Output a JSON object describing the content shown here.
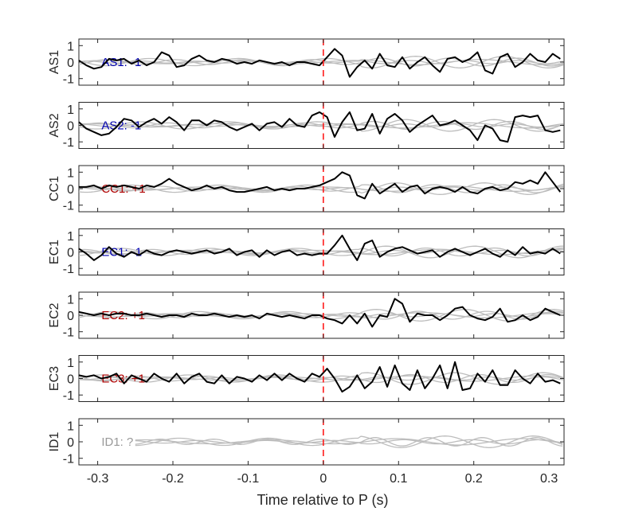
{
  "chart_data": {
    "type": "line",
    "xlabel": "Time relative to P (s)",
    "xlim": [
      -0.325,
      0.32
    ],
    "x_ticks": [
      -0.3,
      -0.2,
      -0.1,
      0,
      0.1,
      0.2,
      0.3
    ],
    "x_tick_labels": [
      "-0.3",
      "-0.2",
      "-0.1",
      "0",
      "0.1",
      "0.2",
      "0.3"
    ],
    "ylim": [
      -1.4,
      1.4
    ],
    "y_ticks": [
      1,
      0,
      -1
    ],
    "y_tick_labels": [
      "1",
      "0",
      "-1"
    ],
    "reference_line_x": 0,
    "colors": {
      "positive": "#b00000",
      "negative": "#0000b0",
      "unknown": "#999999",
      "trace": "#000000",
      "reference": "#bdbdbd",
      "p_marker": "#ff1a1a"
    },
    "panels": [
      {
        "ylabel": "AS1",
        "status": "AS1: -1",
        "polarity": "negative",
        "x": [
          -0.325,
          -0.315,
          -0.305,
          -0.295,
          -0.285,
          -0.275,
          -0.265,
          -0.255,
          -0.245,
          -0.235,
          -0.225,
          -0.215,
          -0.205,
          -0.195,
          -0.185,
          -0.175,
          -0.165,
          -0.155,
          -0.145,
          -0.135,
          -0.125,
          -0.115,
          -0.105,
          -0.095,
          -0.085,
          -0.075,
          -0.065,
          -0.055,
          -0.045,
          -0.035,
          -0.025,
          -0.015,
          -0.005,
          0.005,
          0.015,
          0.025,
          0.035,
          0.045,
          0.055,
          0.065,
          0.075,
          0.085,
          0.095,
          0.105,
          0.115,
          0.125,
          0.135,
          0.145,
          0.155,
          0.165,
          0.175,
          0.185,
          0.195,
          0.205,
          0.215,
          0.225,
          0.235,
          0.245,
          0.255,
          0.265,
          0.275,
          0.285,
          0.295,
          0.305,
          0.315
        ],
        "y": [
          0.1,
          -0.2,
          -0.4,
          -0.3,
          0.2,
          0.1,
          0.2,
          -0.1,
          0.1,
          -0.2,
          0.0,
          0.6,
          0.4,
          -0.3,
          -0.2,
          0.2,
          0.4,
          0.1,
          0.0,
          0.2,
          0.1,
          -0.1,
          0.0,
          -0.1,
          0.1,
          0.0,
          -0.1,
          0.0,
          -0.2,
          0.0,
          0.0,
          -0.1,
          -0.2,
          0.3,
          0.8,
          0.4,
          -0.9,
          -0.3,
          0.1,
          -0.4,
          0.5,
          -0.2,
          -0.3,
          0.3,
          -0.4,
          0.0,
          0.3,
          -0.2,
          -0.6,
          0.2,
          0.3,
          0.0,
          0.2,
          0.6,
          -0.5,
          -0.7,
          0.3,
          0.5,
          -0.3,
          0.0,
          0.5,
          0.1,
          0.0,
          0.5,
          0.2
        ]
      },
      {
        "ylabel": "AS2",
        "status": "AS2: -1",
        "polarity": "negative",
        "x": [
          -0.325,
          -0.315,
          -0.305,
          -0.295,
          -0.285,
          -0.275,
          -0.265,
          -0.255,
          -0.245,
          -0.235,
          -0.225,
          -0.215,
          -0.205,
          -0.195,
          -0.185,
          -0.175,
          -0.165,
          -0.155,
          -0.145,
          -0.135,
          -0.125,
          -0.115,
          -0.105,
          -0.095,
          -0.085,
          -0.075,
          -0.065,
          -0.055,
          -0.045,
          -0.035,
          -0.025,
          -0.015,
          -0.005,
          0.005,
          0.015,
          0.025,
          0.035,
          0.045,
          0.055,
          0.065,
          0.075,
          0.085,
          0.095,
          0.105,
          0.115,
          0.125,
          0.135,
          0.145,
          0.155,
          0.165,
          0.175,
          0.185,
          0.195,
          0.205,
          0.215,
          0.225,
          0.235,
          0.245,
          0.255,
          0.265,
          0.275,
          0.285,
          0.295,
          0.305,
          0.315
        ],
        "y": [
          0.2,
          -0.2,
          -0.4,
          -0.6,
          -0.5,
          -0.1,
          0.4,
          0.3,
          -0.1,
          0.2,
          0.4,
          0.1,
          0.5,
          0.2,
          -0.3,
          0.3,
          0.3,
          0.0,
          0.3,
          0.2,
          -0.1,
          -0.3,
          -0.1,
          0.1,
          -0.3,
          0.1,
          0.2,
          -0.1,
          0.4,
          0.0,
          -0.1,
          0.6,
          0.8,
          0.5,
          -0.7,
          0.2,
          0.8,
          -0.3,
          -0.2,
          0.7,
          -0.5,
          0.4,
          0.7,
          0.3,
          -0.4,
          0.0,
          0.3,
          0.6,
          0.0,
          0.1,
          0.3,
          0.0,
          -0.3,
          -0.9,
          0.0,
          -0.2,
          -0.9,
          -1.0,
          0.5,
          0.6,
          0.5,
          0.6,
          -0.3,
          -0.4,
          -0.3
        ]
      },
      {
        "ylabel": "CC1",
        "status": "CC1: +1",
        "polarity": "positive",
        "x": [
          -0.325,
          -0.315,
          -0.305,
          -0.295,
          -0.285,
          -0.275,
          -0.265,
          -0.255,
          -0.245,
          -0.235,
          -0.225,
          -0.215,
          -0.205,
          -0.195,
          -0.185,
          -0.175,
          -0.165,
          -0.155,
          -0.145,
          -0.135,
          -0.125,
          -0.115,
          -0.105,
          -0.095,
          -0.085,
          -0.075,
          -0.065,
          -0.055,
          -0.045,
          -0.035,
          -0.025,
          -0.015,
          -0.005,
          0.005,
          0.015,
          0.025,
          0.035,
          0.045,
          0.055,
          0.065,
          0.075,
          0.085,
          0.095,
          0.105,
          0.115,
          0.125,
          0.135,
          0.145,
          0.155,
          0.165,
          0.175,
          0.185,
          0.195,
          0.205,
          0.215,
          0.225,
          0.235,
          0.245,
          0.255,
          0.265,
          0.275,
          0.285,
          0.295,
          0.305,
          0.315
        ],
        "y": [
          0.1,
          0.1,
          0.2,
          0.0,
          0.2,
          0.1,
          0.2,
          0.1,
          0.0,
          0.2,
          0.1,
          0.3,
          0.6,
          0.3,
          0.1,
          -0.1,
          0.0,
          0.2,
          0.0,
          0.1,
          -0.1,
          -0.2,
          -0.2,
          -0.1,
          0.0,
          0.1,
          -0.1,
          0.0,
          -0.1,
          0.0,
          0.0,
          0.1,
          0.2,
          0.4,
          0.6,
          1.0,
          0.8,
          -0.4,
          -0.6,
          0.3,
          -0.3,
          0.0,
          0.3,
          -0.2,
          0.1,
          0.2,
          -0.3,
          0.0,
          0.1,
          0.0,
          -0.2,
          0.1,
          -0.2,
          -0.3,
          0.0,
          0.1,
          -0.1,
          0.0,
          0.4,
          0.3,
          0.5,
          0.3,
          1.0,
          0.4,
          -0.2
        ]
      },
      {
        "ylabel": "EC1",
        "status": "EC1: -1",
        "polarity": "negative",
        "x": [
          -0.325,
          -0.315,
          -0.305,
          -0.295,
          -0.285,
          -0.275,
          -0.265,
          -0.255,
          -0.245,
          -0.235,
          -0.225,
          -0.215,
          -0.205,
          -0.195,
          -0.185,
          -0.175,
          -0.165,
          -0.155,
          -0.145,
          -0.135,
          -0.125,
          -0.115,
          -0.105,
          -0.095,
          -0.085,
          -0.075,
          -0.065,
          -0.055,
          -0.045,
          -0.035,
          -0.025,
          -0.015,
          -0.005,
          0.005,
          0.015,
          0.025,
          0.035,
          0.045,
          0.055,
          0.065,
          0.075,
          0.085,
          0.095,
          0.105,
          0.115,
          0.125,
          0.135,
          0.145,
          0.155,
          0.165,
          0.175,
          0.185,
          0.195,
          0.205,
          0.215,
          0.225,
          0.235,
          0.245,
          0.255,
          0.265,
          0.275,
          0.285,
          0.295,
          0.305,
          0.315
        ],
        "y": [
          0.2,
          -0.1,
          -0.5,
          -0.2,
          0.3,
          -0.1,
          -0.3,
          0.0,
          -0.2,
          0.1,
          -0.1,
          -0.2,
          0.0,
          0.1,
          0.0,
          -0.1,
          0.0,
          0.1,
          -0.1,
          0.0,
          0.2,
          -0.2,
          0.0,
          0.1,
          -0.3,
          0.1,
          -0.2,
          0.0,
          0.1,
          -0.2,
          -0.1,
          -0.2,
          -0.1,
          -0.1,
          0.4,
          1.0,
          0.2,
          -0.5,
          0.5,
          0.7,
          -0.3,
          0.0,
          0.2,
          0.3,
          0.1,
          -0.1,
          0.0,
          0.1,
          -0.3,
          0.0,
          0.2,
          0.0,
          -0.2,
          0.0,
          0.2,
          -0.1,
          -0.3,
          0.1,
          -0.2,
          0.3,
          -0.1,
          0.0,
          -0.1,
          0.2,
          -0.1
        ]
      },
      {
        "ylabel": "EC2",
        "status": "EC2: +1",
        "polarity": "positive",
        "x": [
          -0.325,
          -0.315,
          -0.305,
          -0.295,
          -0.285,
          -0.275,
          -0.265,
          -0.255,
          -0.245,
          -0.235,
          -0.225,
          -0.215,
          -0.205,
          -0.195,
          -0.185,
          -0.175,
          -0.165,
          -0.155,
          -0.145,
          -0.135,
          -0.125,
          -0.115,
          -0.105,
          -0.095,
          -0.085,
          -0.075,
          -0.065,
          -0.055,
          -0.045,
          -0.035,
          -0.025,
          -0.015,
          -0.005,
          0.005,
          0.015,
          0.025,
          0.035,
          0.045,
          0.055,
          0.065,
          0.075,
          0.085,
          0.095,
          0.105,
          0.115,
          0.125,
          0.135,
          0.145,
          0.155,
          0.165,
          0.175,
          0.185,
          0.195,
          0.205,
          0.215,
          0.225,
          0.235,
          0.245,
          0.255,
          0.265,
          0.275,
          0.285,
          0.295,
          0.305,
          0.315
        ],
        "y": [
          0.2,
          0.1,
          0.0,
          0.1,
          0.0,
          0.1,
          0.1,
          0.0,
          0.0,
          0.1,
          0.0,
          -0.1,
          0.0,
          0.0,
          -0.1,
          0.1,
          0.0,
          0.0,
          0.1,
          0.0,
          -0.1,
          0.0,
          -0.1,
          0.0,
          -0.2,
          0.1,
          0.0,
          -0.1,
          0.0,
          -0.1,
          -0.2,
          0.0,
          0.0,
          -0.2,
          -0.3,
          -0.5,
          0.0,
          -0.5,
          0.1,
          -0.7,
          0.0,
          -0.1,
          1.0,
          0.7,
          -0.4,
          0.1,
          0.0,
          0.0,
          -0.3,
          0.0,
          0.4,
          0.5,
          0.0,
          -0.2,
          -0.3,
          -0.1,
          0.4,
          -0.4,
          -0.3,
          0.0,
          -0.3,
          -0.1,
          0.4,
          0.2,
          0.0
        ]
      },
      {
        "ylabel": "EC3",
        "status": "EC3: +1",
        "polarity": "positive",
        "x": [
          -0.325,
          -0.315,
          -0.305,
          -0.295,
          -0.285,
          -0.275,
          -0.265,
          -0.255,
          -0.245,
          -0.235,
          -0.225,
          -0.215,
          -0.205,
          -0.195,
          -0.185,
          -0.175,
          -0.165,
          -0.155,
          -0.145,
          -0.135,
          -0.125,
          -0.115,
          -0.105,
          -0.095,
          -0.085,
          -0.075,
          -0.065,
          -0.055,
          -0.045,
          -0.035,
          -0.025,
          -0.015,
          -0.005,
          0.005,
          0.015,
          0.025,
          0.035,
          0.045,
          0.055,
          0.065,
          0.075,
          0.085,
          0.095,
          0.105,
          0.115,
          0.125,
          0.135,
          0.145,
          0.155,
          0.165,
          0.175,
          0.185,
          0.195,
          0.205,
          0.215,
          0.225,
          0.235,
          0.245,
          0.255,
          0.265,
          0.275,
          0.285,
          0.295,
          0.305,
          0.315
        ],
        "y": [
          0.2,
          0.1,
          0.2,
          0.0,
          0.1,
          0.3,
          -0.3,
          0.2,
          0.0,
          -0.2,
          0.3,
          0.0,
          -0.2,
          0.3,
          -0.3,
          0.1,
          0.3,
          -0.2,
          -0.3,
          0.2,
          -0.3,
          0.1,
          0.0,
          -0.2,
          0.2,
          -0.1,
          0.3,
          -0.1,
          0.3,
          0.0,
          -0.2,
          0.3,
          0.1,
          0.6,
          0.0,
          -0.8,
          -0.5,
          0.2,
          -0.6,
          -0.2,
          0.7,
          -0.5,
          0.8,
          -0.3,
          -0.7,
          0.5,
          -0.6,
          0.0,
          0.8,
          -0.6,
          1.0,
          -0.7,
          -0.6,
          0.3,
          -0.2,
          0.5,
          -0.4,
          -0.4,
          0.5,
          0.0,
          -0.3,
          0.3,
          -0.2,
          -0.1,
          -0.3
        ]
      },
      {
        "ylabel": "ID1",
        "status": "ID1: ?",
        "polarity": "unknown",
        "x": [],
        "y": []
      }
    ]
  }
}
